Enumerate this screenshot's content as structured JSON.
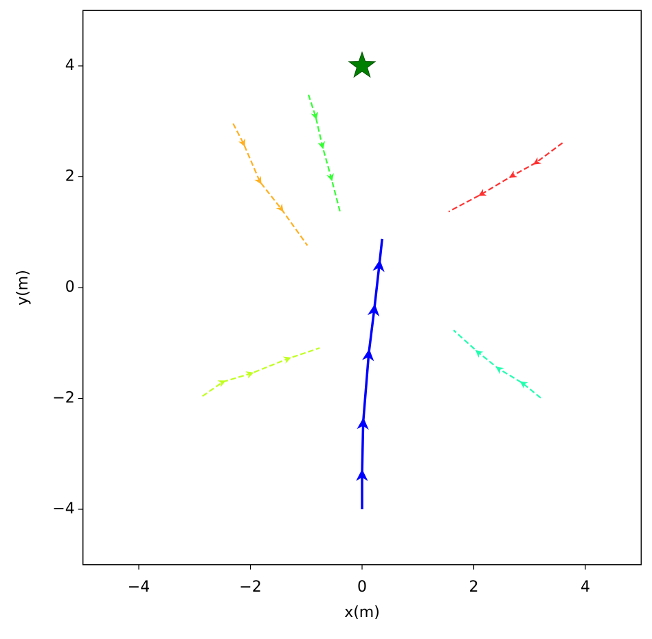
{
  "chart_data": {
    "type": "line",
    "xlabel": "x(m)",
    "ylabel": "y(m)",
    "xlim": [
      -5,
      5
    ],
    "ylim": [
      -5,
      5
    ],
    "xticks": [
      {
        "value": -4,
        "label": "−4"
      },
      {
        "value": -2,
        "label": "−2"
      },
      0,
      2,
      4
    ],
    "yticks": [
      {
        "value": -4,
        "label": "−4"
      },
      {
        "value": -2,
        "label": "−2"
      },
      0,
      2,
      4
    ],
    "grid": false,
    "series": [
      {
        "color": "#0000ff",
        "style": "solid",
        "x": [
          0,
          0,
          0.02,
          0.12,
          0.22,
          0.31,
          0.36
        ],
        "y": [
          -4.0,
          -3.36,
          -2.43,
          -1.19,
          -0.38,
          0.42,
          0.88
        ]
      },
      {
        "color": "#ff3030",
        "style": "dashed",
        "x": [
          3.59,
          3.11,
          2.68,
          2.13,
          1.55
        ],
        "y": [
          2.61,
          2.25,
          2.01,
          1.68,
          1.37
        ]
      },
      {
        "color": "#33ff33",
        "style": "dashed",
        "x": [
          -0.96,
          -0.83,
          -0.71,
          -0.55,
          -0.39
        ],
        "y": [
          3.48,
          3.08,
          2.55,
          1.97,
          1.35
        ]
      },
      {
        "color": "#ffb020",
        "style": "dashed",
        "x": [
          -2.31,
          -2.12,
          -1.83,
          -1.44,
          -0.98
        ],
        "y": [
          2.96,
          2.59,
          1.91,
          1.41,
          0.76
        ]
      },
      {
        "color": "#c0ff20",
        "style": "dashed",
        "x": [
          -2.86,
          -2.49,
          -1.99,
          -1.32,
          -0.76
        ],
        "y": [
          -1.96,
          -1.7,
          -1.55,
          -1.28,
          -1.09
        ]
      },
      {
        "color": "#20ffb0",
        "style": "dashed",
        "x": [
          3.2,
          2.87,
          2.44,
          2.07,
          1.64
        ],
        "y": [
          -1.99,
          -1.72,
          -1.46,
          -1.16,
          -0.77
        ]
      }
    ],
    "markers": [
      {
        "x": 0,
        "y": 4,
        "color": "#008000",
        "shape": "star"
      }
    ]
  }
}
